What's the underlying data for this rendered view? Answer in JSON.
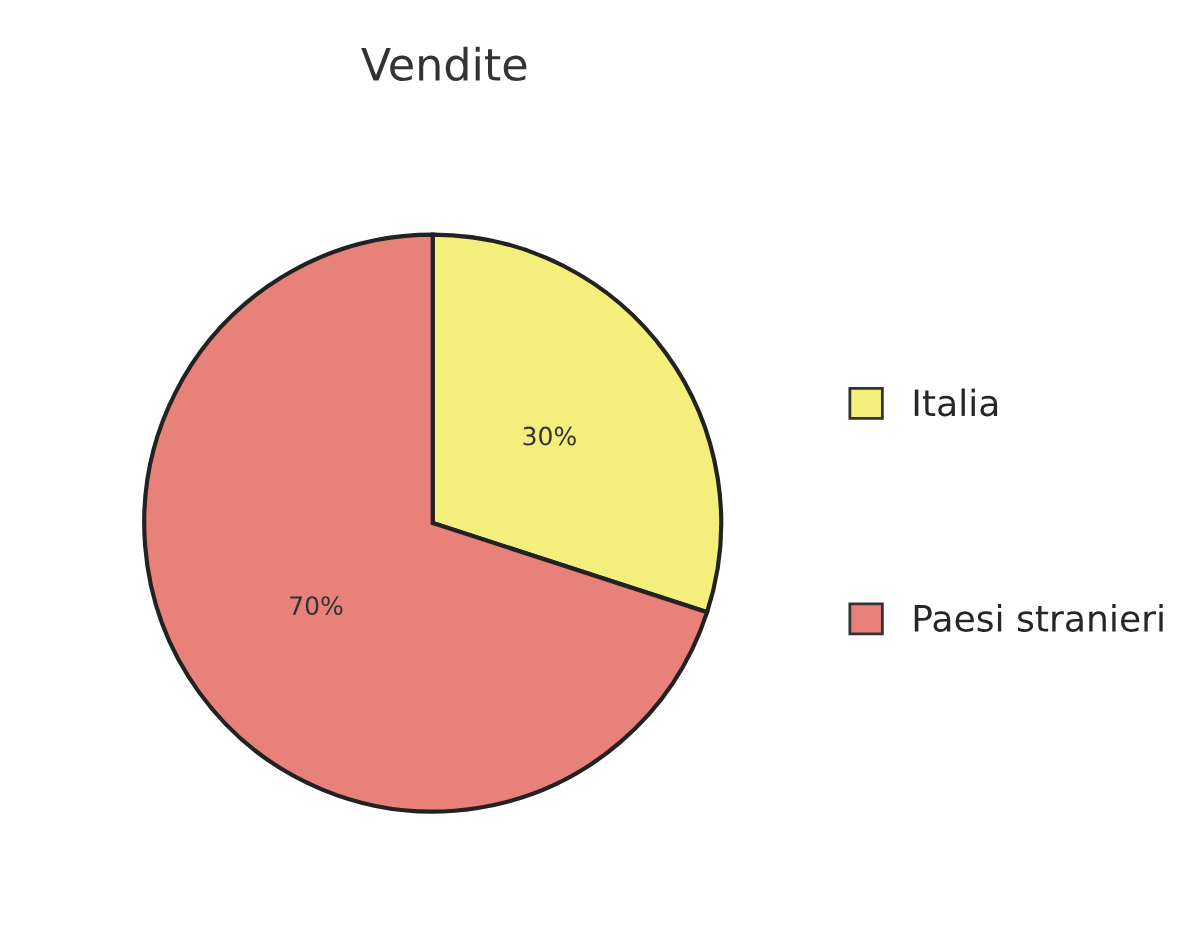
{
  "chart_data": {
    "type": "pie",
    "title": "Vendite",
    "categories": [
      "Italia",
      "Paesi stranieri"
    ],
    "values": [
      30,
      70
    ],
    "colors": [
      "#f4ef7c",
      "#e8817a"
    ],
    "value_labels": [
      "30%",
      "70%"
    ],
    "legend": "right"
  }
}
